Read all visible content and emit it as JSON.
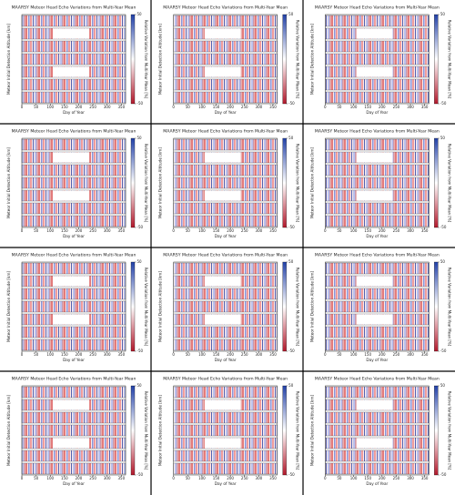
{
  "chart_data": [
    {
      "type": "heatmap",
      "title": "MAARSY Meteor Head Echo Variations from Multi-Year Mean",
      "xlabel": "Day of Year",
      "ylabel": "Meteor Initial Detection Altitude [km]",
      "colorbar_label": "Relative Variation from Multi-Year Mean [%]",
      "xlim": [
        0,
        365
      ],
      "xticks": [
        0,
        50,
        100,
        150,
        200,
        250,
        300,
        350
      ],
      "clim": [
        -50,
        50
      ],
      "cticks": [
        -50,
        50
      ],
      "colormap": [
        "#b2182b",
        "#ffffff",
        "#2140a8"
      ]
    },
    {
      "type": "heatmap",
      "title": "MAARSY Meteor Head Echo Variations from Multi-Year Mean",
      "xlabel": "Day of Year",
      "ylabel": "Meteor Initial Detection Altitude [km]",
      "colorbar_label": "Relative Variation from Multi-Year Mean [%]",
      "xlim": [
        0,
        365
      ],
      "xticks": [
        0,
        50,
        100,
        150,
        200,
        250,
        300,
        350
      ],
      "clim": [
        -50,
        50
      ],
      "cticks": [
        -50,
        50
      ],
      "colormap": [
        "#b2182b",
        "#ffffff",
        "#2140a8"
      ]
    },
    {
      "type": "heatmap",
      "title": "MAARSY Meteor Head Echo Variations from Multi-Year Mean",
      "xlabel": "Day of Year",
      "ylabel": "Meteor Initial Detection Altitude [km]",
      "colorbar_label": "Relative Variation from Multi-Year Mean [%]",
      "xlim": [
        0,
        365
      ],
      "xticks": [
        0,
        50,
        100,
        150,
        200,
        250,
        300,
        350
      ],
      "clim": [
        -50,
        50
      ],
      "cticks": [
        -50,
        50
      ],
      "colormap": [
        "#b2182b",
        "#ffffff",
        "#2140a8"
      ]
    },
    {
      "type": "heatmap",
      "title": "MAARSY Meteor Head Echo Variations from Multi-Year Mean",
      "xlabel": "Day of Year",
      "ylabel": "Meteor Initial Detection Altitude [km]",
      "colorbar_label": "Relative Variation from Multi-Year Mean [%]",
      "xlim": [
        0,
        365
      ],
      "xticks": [
        0,
        50,
        100,
        150,
        200,
        250,
        300,
        350
      ],
      "clim": [
        -50,
        50
      ],
      "cticks": [
        -50,
        50
      ],
      "colormap": [
        "#b2182b",
        "#ffffff",
        "#2140a8"
      ]
    },
    {
      "type": "heatmap",
      "title": "MAARSY Meteor Head Echo Variations from Multi-Year Mean",
      "xlabel": "Day of Year",
      "ylabel": "Meteor Initial Detection Altitude [km]",
      "colorbar_label": "Relative Variation from Multi-Year Mean [%]",
      "xlim": [
        0,
        365
      ],
      "xticks": [
        0,
        50,
        100,
        150,
        200,
        250,
        300,
        350
      ],
      "clim": [
        -50,
        50
      ],
      "cticks": [
        -50,
        50
      ],
      "colormap": [
        "#b2182b",
        "#ffffff",
        "#2140a8"
      ]
    },
    {
      "type": "heatmap",
      "title": "MAARSY Meteor Head Echo Variations from Multi-Year Mean",
      "xlabel": "Day of Year",
      "ylabel": "Meteor Initial Detection Altitude [km]",
      "colorbar_label": "Relative Variation from Multi-Year Mean [%]",
      "xlim": [
        0,
        365
      ],
      "xticks": [
        0,
        50,
        100,
        150,
        200,
        250,
        300,
        350
      ],
      "clim": [
        -50,
        50
      ],
      "cticks": [
        -50,
        50
      ],
      "colormap": [
        "#b2182b",
        "#ffffff",
        "#2140a8"
      ]
    },
    {
      "type": "heatmap",
      "title": "MAARSY Meteor Head Echo Variations from Multi-Year Mean",
      "xlabel": "Day of Year",
      "ylabel": "Meteor Initial Detection Altitude [km]",
      "colorbar_label": "Relative Variation from Multi-Year Mean [%]",
      "xlim": [
        0,
        365
      ],
      "xticks": [
        0,
        50,
        100,
        150,
        200,
        250,
        300,
        350
      ],
      "clim": [
        -50,
        50
      ],
      "cticks": [
        -50,
        50
      ],
      "colormap": [
        "#b2182b",
        "#ffffff",
        "#2140a8"
      ]
    },
    {
      "type": "heatmap",
      "title": "MAARSY Meteor Head Echo Variations from Multi-Year Mean",
      "xlabel": "Day of Year",
      "ylabel": "Meteor Initial Detection Altitude [km]",
      "colorbar_label": "Relative Variation from Multi-Year Mean [%]",
      "xlim": [
        0,
        365
      ],
      "xticks": [
        0,
        50,
        100,
        150,
        200,
        250,
        300,
        350
      ],
      "clim": [
        -50,
        50
      ],
      "cticks": [
        -50,
        50
      ],
      "colormap": [
        "#b2182b",
        "#ffffff",
        "#2140a8"
      ]
    },
    {
      "type": "heatmap",
      "title": "MAARSY Meteor Head Echo Variations from Multi-Year Mean",
      "xlabel": "Day of Year",
      "ylabel": "Meteor Initial Detection Altitude [km]",
      "colorbar_label": "Relative Variation from Multi-Year Mean [%]",
      "xlim": [
        0,
        365
      ],
      "xticks": [
        0,
        50,
        100,
        150,
        200,
        250,
        300,
        350
      ],
      "clim": [
        -50,
        50
      ],
      "cticks": [
        -50,
        50
      ],
      "colormap": [
        "#b2182b",
        "#ffffff",
        "#2140a8"
      ]
    },
    {
      "type": "heatmap",
      "title": "MAARSY Meteor Head Echo Variations from Multi-Year Mean",
      "xlabel": "Day of Year",
      "ylabel": "Meteor Initial Detection Altitude [km]",
      "colorbar_label": "Relative Variation from Multi-Year Mean [%]",
      "xlim": [
        0,
        365
      ],
      "xticks": [
        0,
        50,
        100,
        150,
        200,
        250,
        300,
        350
      ],
      "clim": [
        -50,
        50
      ],
      "cticks": [
        -50,
        50
      ],
      "colormap": [
        "#b2182b",
        "#ffffff",
        "#2140a8"
      ]
    },
    {
      "type": "heatmap",
      "title": "MAARSY Meteor Head Echo Variations from Multi-Year Mean",
      "xlabel": "Day of Year",
      "ylabel": "Meteor Initial Detection Altitude [km]",
      "colorbar_label": "Relative Variation from Multi-Year Mean [%]",
      "xlim": [
        0,
        365
      ],
      "xticks": [
        0,
        50,
        100,
        150,
        200,
        250,
        300,
        350
      ],
      "clim": [
        -50,
        50
      ],
      "cticks": [
        -50,
        50
      ],
      "colormap": [
        "#b2182b",
        "#ffffff",
        "#2140a8"
      ]
    },
    {
      "type": "heatmap",
      "title": "MAARSY Meteor Head Echo Variations from Multi-Year Mean",
      "xlabel": "Day of Year",
      "ylabel": "Meteor Initial Detection Altitude [km]",
      "colorbar_label": "Relative Variation from Multi-Year Mean [%]",
      "xlim": [
        0,
        365
      ],
      "xticks": [
        0,
        50,
        100,
        150,
        200,
        250,
        300,
        350
      ],
      "clim": [
        -50,
        50
      ],
      "cticks": [
        -50,
        50
      ],
      "colormap": [
        "#b2182b",
        "#ffffff",
        "#2140a8"
      ]
    }
  ]
}
